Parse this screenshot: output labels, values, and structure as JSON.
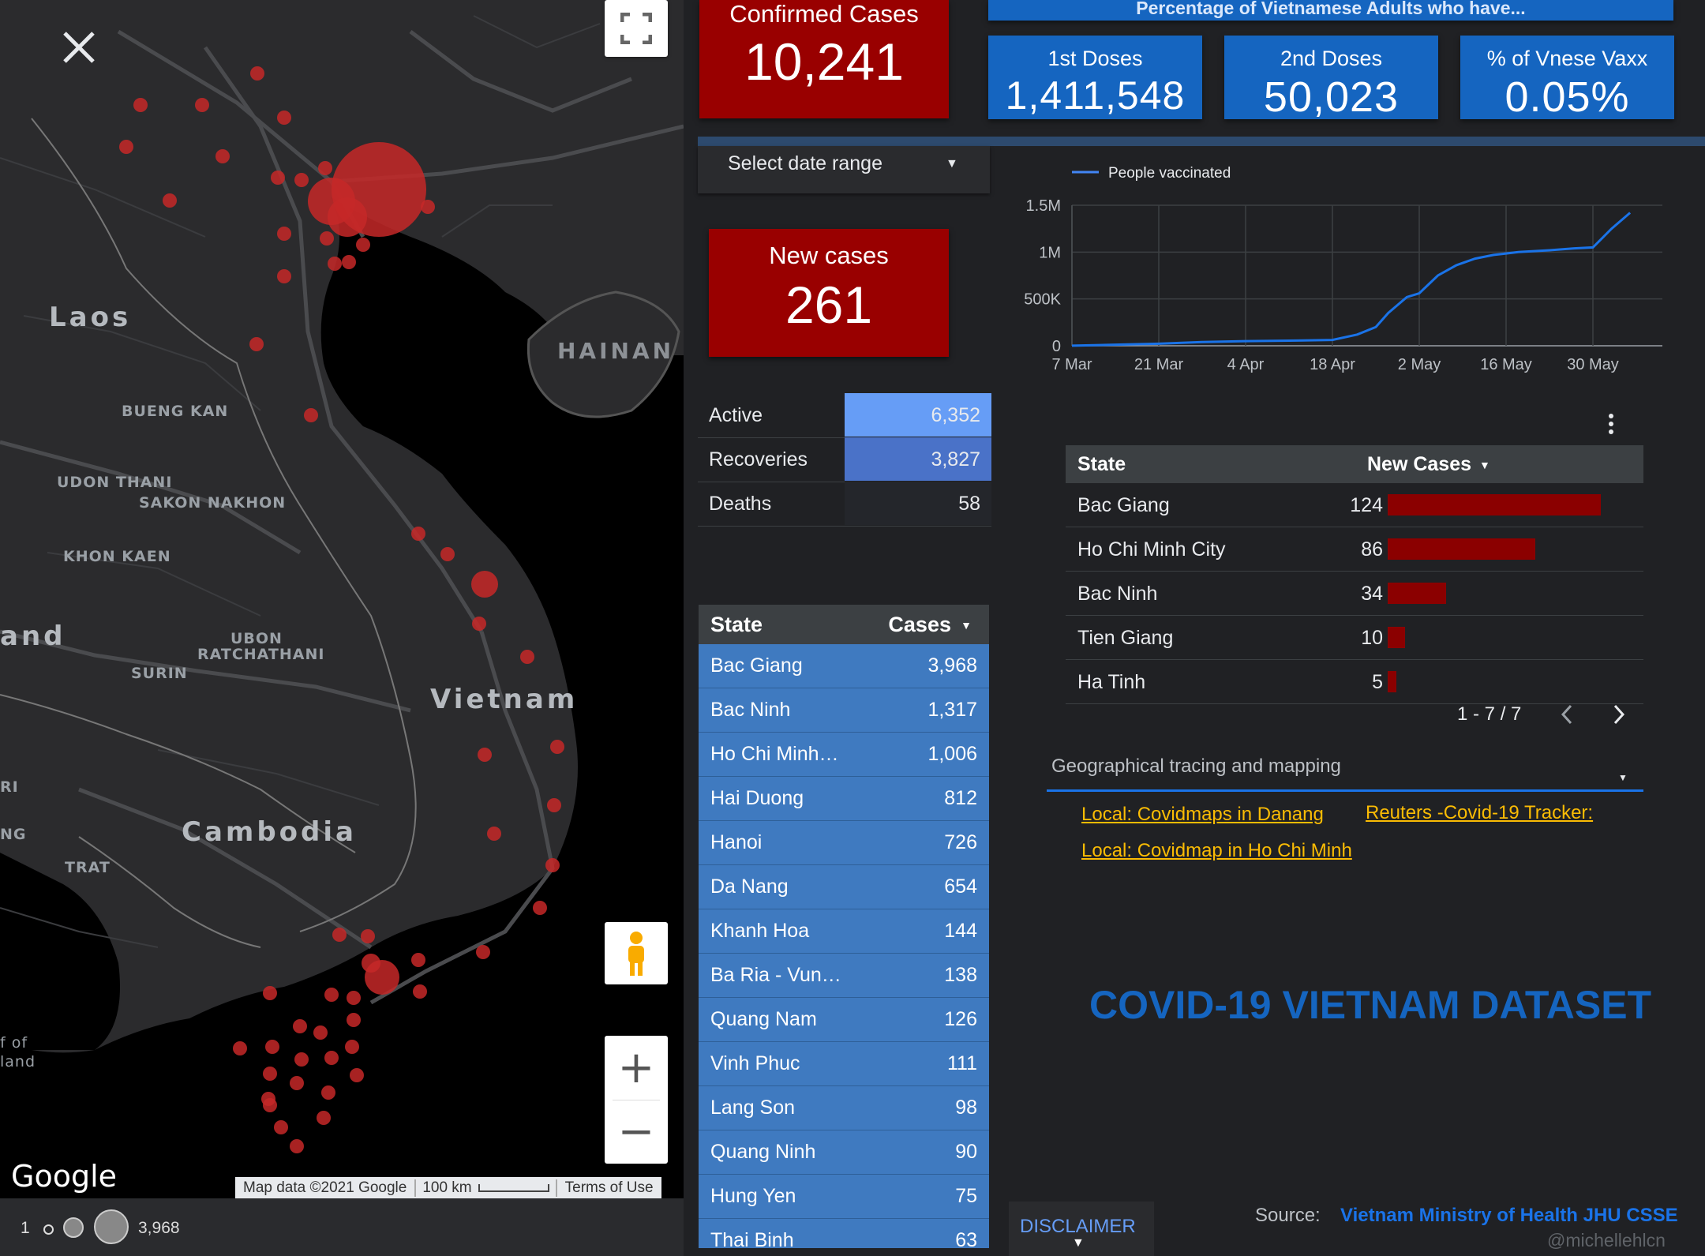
{
  "map": {
    "country_labels": {
      "laos": "Laos",
      "hainan": "HAINAN",
      "vietnam": "Vietnam",
      "cambodia": "Cambodia",
      "thailand_fragment": "and"
    },
    "city_labels": {
      "bueng_kan": "BUENG KAN",
      "udon_thani": "UDON THANI",
      "sakon_nakhon": "SAKON NAKHON",
      "khon_kaen": "KHON KAEN",
      "ubon_1": "UBON",
      "ubon_2": "RATCHATHANI",
      "surin": "SURIN",
      "trat": "TRAT",
      "ri_fragment": "RI",
      "ng_fragment": "NG",
      "gulf_1": "f of",
      "gulf_2": "land"
    },
    "google_logo": "Google",
    "attribution": {
      "map_data": "Map data ©2021 Google",
      "scale": "100 km",
      "terms": "Terms of Use"
    },
    "zoom_in": "+",
    "zoom_out": "−",
    "legend": {
      "min": "1",
      "max": "3,968"
    },
    "icons": {
      "close": "close-icon",
      "fullscreen": "fullscreen-icon",
      "pegman": "pegman-icon"
    }
  },
  "kpis": {
    "confirmed": {
      "label": "Confirmed Cases",
      "value": "10,241"
    },
    "new_cases": {
      "label": "New cases",
      "value": "261"
    },
    "vaccination_title": "Percentage of Vietnamese Adults who have...",
    "first_doses": {
      "label": "1st Doses",
      "value": "1,411,548"
    },
    "second_doses": {
      "label": "2nd Doses",
      "value": "50,023"
    },
    "pct_vaxx": {
      "label": "% of Vnese Vaxx",
      "value": "0.05%"
    }
  },
  "date_range": {
    "label": "Select date range"
  },
  "status": [
    {
      "name": "Active",
      "value": "6,352",
      "fill": 1.0,
      "color": "#669df6"
    },
    {
      "name": "Recoveries",
      "value": "3,827",
      "fill": 1.0,
      "color": "#4a72c8"
    },
    {
      "name": "Deaths",
      "value": "58",
      "fill": 1.0,
      "color": "#24262b"
    }
  ],
  "cases_table": {
    "headers": {
      "state": "State",
      "cases": "Cases"
    },
    "rows": [
      {
        "state": "Bac Giang",
        "cases": "3,968"
      },
      {
        "state": "Bac Ninh",
        "cases": "1,317"
      },
      {
        "state": "Ho Chi Minh…",
        "cases": "1,006"
      },
      {
        "state": "Hai Duong",
        "cases": "812"
      },
      {
        "state": "Hanoi",
        "cases": "726"
      },
      {
        "state": "Da Nang",
        "cases": "654"
      },
      {
        "state": "Khanh Hoa",
        "cases": "144"
      },
      {
        "state": "Ba Ria - Vun…",
        "cases": "138"
      },
      {
        "state": "Quang Nam",
        "cases": "126"
      },
      {
        "state": "Vinh Phuc",
        "cases": "111"
      },
      {
        "state": "Lang Son",
        "cases": "98"
      },
      {
        "state": "Quang Ninh",
        "cases": "90"
      },
      {
        "state": "Hung Yen",
        "cases": "75"
      },
      {
        "state": "Thai Binh",
        "cases": "63"
      }
    ]
  },
  "chart_data": {
    "type": "line",
    "legend": "People vaccinated",
    "x": [
      "7 Mar",
      "14 Mar",
      "21 Mar",
      "28 Mar",
      "4 Apr",
      "11 Apr",
      "18 Apr",
      "22 Apr",
      "25 Apr",
      "27 Apr",
      "30 Apr",
      "2 May",
      "5 May",
      "8 May",
      "11 May",
      "14 May",
      "18 May",
      "23 May",
      "27 May",
      "30 May",
      "2 Jun",
      "5 Jun"
    ],
    "series": [
      {
        "name": "People vaccinated",
        "values": [
          1000,
          12000,
          22000,
          40000,
          50000,
          55000,
          62000,
          120000,
          200000,
          350000,
          520000,
          560000,
          750000,
          860000,
          930000,
          970000,
          1000000,
          1020000,
          1040000,
          1050000,
          1250000,
          1420000
        ]
      }
    ],
    "x_ticks": [
      "7 Mar",
      "21 Mar",
      "4 Apr",
      "18 Apr",
      "2 May",
      "16 May",
      "30 May"
    ],
    "y_ticks": [
      "0",
      "500K",
      "1M",
      "1.5M"
    ],
    "ylim": [
      0,
      1500000
    ],
    "grid": true,
    "legend_position": "top-left"
  },
  "new_cases_table": {
    "headers": {
      "state": "State",
      "new_cases": "New Cases"
    },
    "rows": [
      {
        "state": "Bac Giang",
        "value": "124",
        "fraction": 1.0
      },
      {
        "state": "Ho Chi Minh City",
        "value": "86",
        "fraction": 0.694
      },
      {
        "state": "Bac Ninh",
        "value": "34",
        "fraction": 0.274
      },
      {
        "state": "Tien Giang",
        "value": "10",
        "fraction": 0.081
      },
      {
        "state": "Ha Tinh",
        "value": "5",
        "fraction": 0.04
      }
    ],
    "pagination": "1 - 7 / 7"
  },
  "geo_dropdown": {
    "label": "Geographical tracing and mapping"
  },
  "links": {
    "danang": "Local: Covidmaps in Danang",
    "reuters": "Reuters -Covid-19 Tracker:",
    "hcm": "Local: Covidmap in Ho Chi Minh"
  },
  "title": "COVID-19 VIETNAM DATASET",
  "disclaimer": "DISCLAIMER",
  "source": {
    "label": "Source:",
    "value": "Vietnam Ministry of Health JHU CSSE"
  },
  "watermark": "@michellehlcn",
  "colors": {
    "red_kpi": "#990000",
    "blue_kpi": "#1565c0",
    "link": "#fbbc04",
    "title": "#1565c0",
    "bar": "#8b0000"
  }
}
